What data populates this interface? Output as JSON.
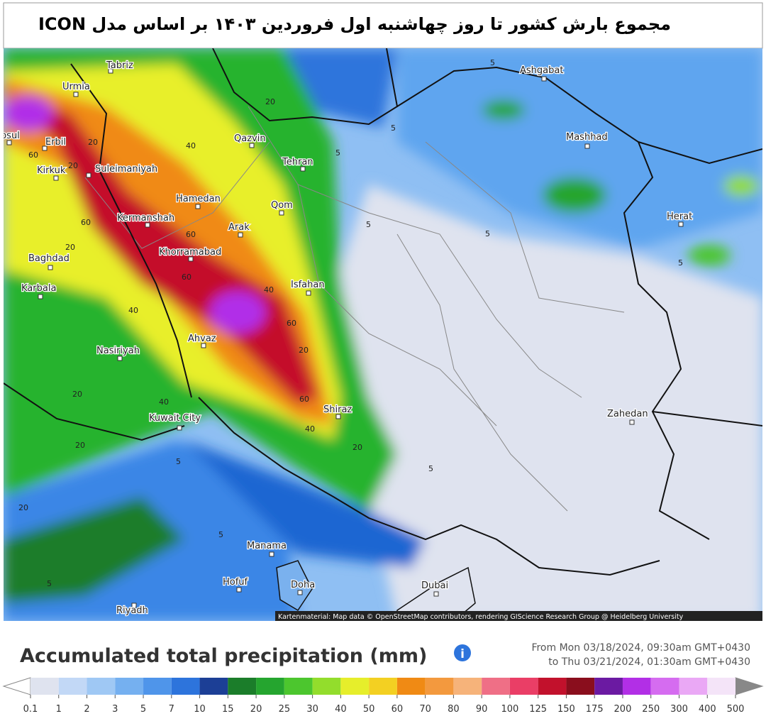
{
  "header": {
    "title": "مجموع بارش کشور تا روز چهاشنبه اول فروردین ۱۴۰۳ بر اساس مدل ICON"
  },
  "map": {
    "cities": [
      "Tabriz",
      "Urmia",
      "Mosul",
      "Erbil",
      "Kirkuk",
      "Suleimaniyah",
      "Qazvin",
      "Tehran",
      "Hamedan",
      "Qom",
      "Kermanshah",
      "Arak",
      "Khorramabad",
      "Baghdad",
      "Isfahan",
      "Karbala",
      "Ahvaz",
      "Nasiriyah",
      "Shiraz",
      "Kuwait City",
      "Zahedan",
      "Manama",
      "Hofuf",
      "Doha",
      "Dubai",
      "Riyadh",
      "Ashgabat",
      "Mashhad",
      "Herat"
    ],
    "contour_labels": [
      "20",
      "40",
      "60",
      "60",
      "60",
      "60",
      "40",
      "60",
      "40",
      "20",
      "20",
      "20",
      "40",
      "60",
      "40",
      "20",
      "20",
      "20",
      "5",
      "5",
      "5",
      "5",
      "5",
      "5",
      "5",
      "5",
      "5",
      "5",
      "20",
      "20"
    ],
    "attribution": "Kartenmaterial: Map data © OpenStreetMap contributors, rendering GIScience Research Group @ Heidelberg University"
  },
  "legend": {
    "title": "Accumulated total precipitation (mm)",
    "from": "From Mon 03/18/2024, 09:30am GMT+0430",
    "to": "to Thu 03/21/2024, 01:30am GMT+0430",
    "ticks": [
      0.1,
      1,
      2,
      3,
      5,
      7,
      10,
      15,
      20,
      25,
      30,
      40,
      50,
      60,
      70,
      80,
      90,
      100,
      125,
      150,
      175,
      200,
      250,
      300,
      400,
      500
    ],
    "colors": [
      "#dfe3ef",
      "#c2d8f6",
      "#9fc8f4",
      "#75b0f0",
      "#4f95ea",
      "#2d74dc",
      "#1c3f96",
      "#1b7d2a",
      "#25a52f",
      "#4cc62e",
      "#93dd2c",
      "#e6ee2b",
      "#f3d022",
      "#f08a14",
      "#f3993e",
      "#f6b37a",
      "#ef6f86",
      "#ea3e66",
      "#c2112c",
      "#8a0e1d",
      "#6b1aa2",
      "#b22fe6",
      "#d56cf0",
      "#eaa8f5",
      "#f4e4f8"
    ]
  }
}
